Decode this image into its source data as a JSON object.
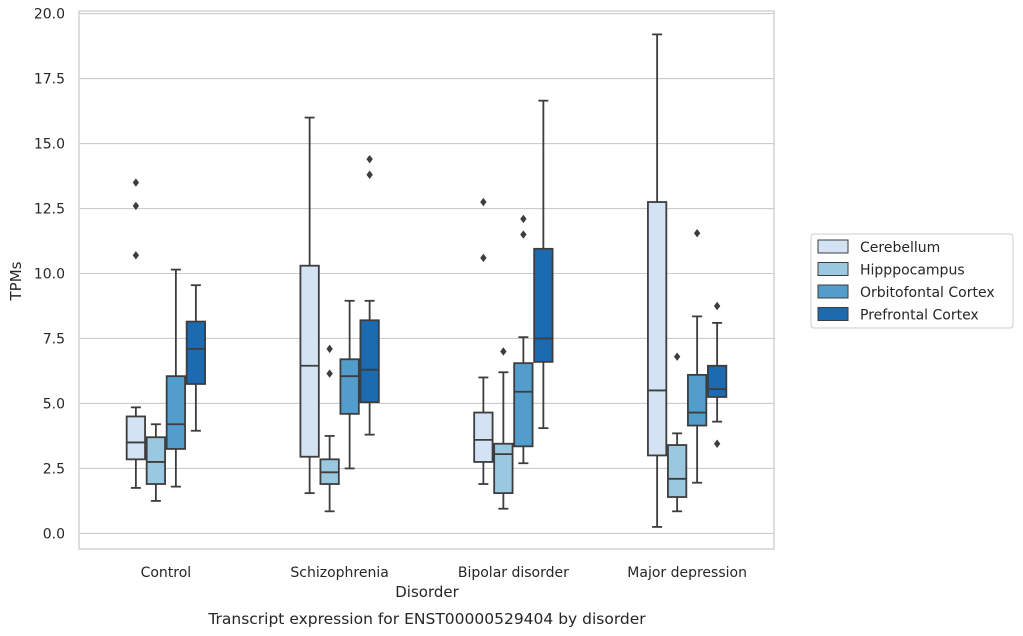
{
  "caption": "Transcript expression for ENST00000529404 by disorder",
  "chart_data": {
    "type": "box",
    "xlabel": "Disorder",
    "ylabel": "TPMs",
    "ylim": [
      -0.6,
      20.1
    ],
    "yticks": [
      0.0,
      2.5,
      5.0,
      7.5,
      10.0,
      12.5,
      15.0,
      17.5,
      20.0
    ],
    "ytick_labels": [
      "0.0",
      "2.5",
      "5.0",
      "7.5",
      "10.0",
      "12.5",
      "15.0",
      "17.5",
      "20.0"
    ],
    "grid": "horizontal",
    "legend_position": "right",
    "categories": [
      "Control",
      "Schizophrenia",
      "Bipolar disorder",
      "Major depression"
    ],
    "series": [
      {
        "name": "Cerebellum",
        "color": "#d3e3f3",
        "boxes": [
          {
            "whisker_low": 1.75,
            "q1": 2.85,
            "median": 3.5,
            "q3": 4.5,
            "whisker_high": 4.85,
            "outliers": [
              10.7,
              12.6,
              13.5
            ]
          },
          {
            "whisker_low": 1.55,
            "q1": 2.95,
            "median": 6.45,
            "q3": 10.3,
            "whisker_high": 16.0,
            "outliers": []
          },
          {
            "whisker_low": 1.9,
            "q1": 2.75,
            "median": 3.6,
            "q3": 4.65,
            "whisker_high": 6.0,
            "outliers": [
              10.6,
              12.75
            ]
          },
          {
            "whisker_low": 0.25,
            "q1": 3.0,
            "median": 5.5,
            "q3": 12.75,
            "whisker_high": 19.2,
            "outliers": []
          }
        ]
      },
      {
        "name": "Hipppocampus",
        "color": "#9ac8e0",
        "boxes": [
          {
            "whisker_low": 1.25,
            "q1": 1.9,
            "median": 2.75,
            "q3": 3.7,
            "whisker_high": 4.2,
            "outliers": []
          },
          {
            "whisker_low": 0.85,
            "q1": 1.9,
            "median": 2.35,
            "q3": 2.85,
            "whisker_high": 3.75,
            "outliers": [
              6.15,
              7.1
            ]
          },
          {
            "whisker_low": 0.95,
            "q1": 1.55,
            "median": 3.05,
            "q3": 3.45,
            "whisker_high": 6.2,
            "outliers": [
              7.0
            ]
          },
          {
            "whisker_low": 0.85,
            "q1": 1.4,
            "median": 2.1,
            "q3": 3.4,
            "whisker_high": 3.85,
            "outliers": [
              6.8
            ]
          }
        ]
      },
      {
        "name": "Orbitofontal Cortex",
        "color": "#529dcc",
        "boxes": [
          {
            "whisker_low": 1.8,
            "q1": 3.25,
            "median": 4.2,
            "q3": 6.05,
            "whisker_high": 10.15,
            "outliers": []
          },
          {
            "whisker_low": 2.5,
            "q1": 4.6,
            "median": 6.05,
            "q3": 6.7,
            "whisker_high": 8.95,
            "outliers": []
          },
          {
            "whisker_low": 2.7,
            "q1": 3.35,
            "median": 5.45,
            "q3": 6.55,
            "whisker_high": 7.55,
            "outliers": [
              11.5,
              12.1
            ]
          },
          {
            "whisker_low": 1.95,
            "q1": 4.15,
            "median": 4.65,
            "q3": 6.1,
            "whisker_high": 8.35,
            "outliers": [
              11.55
            ]
          }
        ]
      },
      {
        "name": "Prefrontal Cortex",
        "color": "#1c6aaf",
        "boxes": [
          {
            "whisker_low": 3.95,
            "q1": 5.75,
            "median": 7.1,
            "q3": 8.15,
            "whisker_high": 9.55,
            "outliers": []
          },
          {
            "whisker_low": 3.8,
            "q1": 5.05,
            "median": 6.3,
            "q3": 8.2,
            "whisker_high": 8.95,
            "outliers": [
              13.8,
              14.4
            ]
          },
          {
            "whisker_low": 4.05,
            "q1": 6.6,
            "median": 7.5,
            "q3": 10.95,
            "whisker_high": 16.65,
            "outliers": []
          },
          {
            "whisker_low": 4.3,
            "q1": 5.25,
            "median": 5.55,
            "q3": 6.45,
            "whisker_high": 8.1,
            "outliers": [
              3.45,
              8.75
            ]
          }
        ]
      }
    ]
  }
}
